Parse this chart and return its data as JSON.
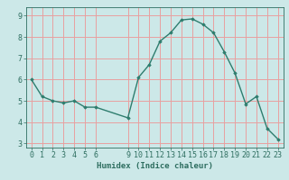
{
  "x": [
    0,
    1,
    2,
    3,
    4,
    5,
    6,
    9,
    10,
    11,
    12,
    13,
    14,
    15,
    16,
    17,
    18,
    19,
    20,
    21,
    22,
    23
  ],
  "y": [
    6.0,
    5.2,
    5.0,
    4.9,
    5.0,
    4.7,
    4.7,
    4.2,
    6.1,
    6.7,
    7.8,
    8.2,
    8.8,
    8.85,
    8.6,
    8.2,
    7.3,
    6.3,
    4.85,
    5.2,
    3.7,
    3.2
  ],
  "line_color": "#2e7d6e",
  "marker": "D",
  "marker_size": 1.8,
  "bg_color": "#cce8e8",
  "grid_color": "#e8a0a0",
  "xlabel": "Humidex (Indice chaleur)",
  "ylim": [
    2.8,
    9.4
  ],
  "xlim": [
    -0.5,
    23.5
  ],
  "xticks": [
    0,
    1,
    2,
    3,
    4,
    5,
    6,
    9,
    10,
    11,
    12,
    13,
    14,
    15,
    16,
    17,
    18,
    19,
    20,
    21,
    22,
    23
  ],
  "yticks": [
    3,
    4,
    5,
    6,
    7,
    8,
    9
  ],
  "tick_label_color": "#2e6e60",
  "xlabel_color": "#2e6e60",
  "xlabel_fontsize": 6.5,
  "tick_fontsize": 6.0,
  "line_width": 1.0
}
